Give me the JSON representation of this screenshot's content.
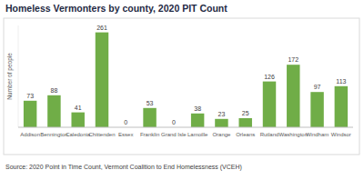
{
  "chart_data": {
    "type": "bar",
    "title": "Homeless Vermonters by county, 2020 PIT Count",
    "y_label": "Number of people",
    "categories": [
      "Addison",
      "Bennington",
      "Caledonia",
      "Chittenden",
      "Essex",
      "Franklin",
      "Grand Isle",
      "Lamoille",
      "Orange",
      "Orleans",
      "Rutland",
      "Washington",
      "Windham",
      "Windsor"
    ],
    "values": [
      73,
      88,
      41,
      261,
      0,
      53,
      0,
      38,
      23,
      25,
      126,
      172,
      97,
      113
    ],
    "color": "#70ad47",
    "ylim": [
      0,
      280
    ],
    "grid": false,
    "data_labels": true,
    "tick_labels": "x",
    "annotations": [
      "Source: 2020 Point in Time Count, Vermont Coalition to End Homelessness (VCEH)"
    ]
  }
}
